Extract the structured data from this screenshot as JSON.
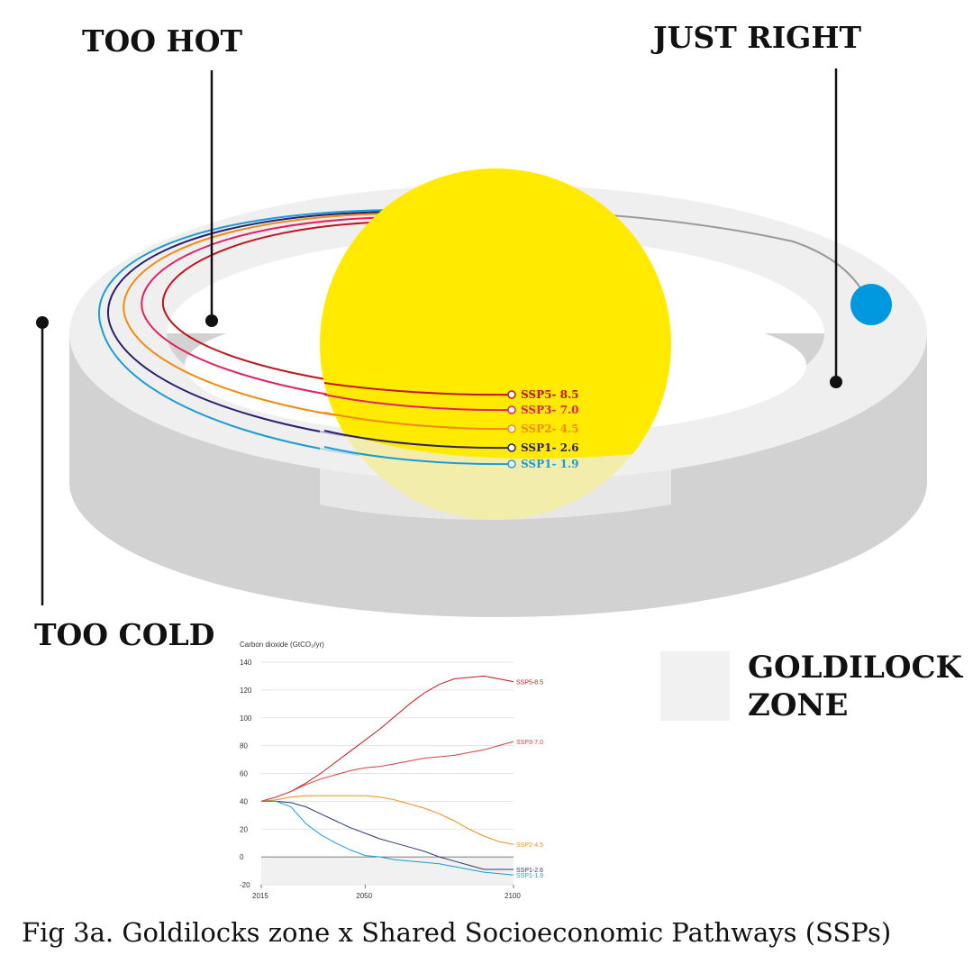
{
  "callouts": {
    "too_hot": "TOO HOT",
    "just_right": "JUST RIGHT",
    "too_cold": "TOO COLD"
  },
  "legend": {
    "label_line1": "GOLDILOCK",
    "label_line2": "ZONE",
    "swatch_color": "#f1f1f1"
  },
  "caption": "Fig 3a. Goldilocks zone x Shared Socioeconomic Pathways (SSPs)",
  "colors": {
    "sun": "#ffea00",
    "planet": "#0099e0",
    "ring_top": "#efefef",
    "ring_side": "#d2d2d2"
  },
  "pathways": [
    {
      "name": "SSP5- 8.5",
      "color": "#c0141b"
    },
    {
      "name": "SSP3- 7.0",
      "color": "#e21f62"
    },
    {
      "name": "SSP2- 4.5",
      "color": "#f28a12"
    },
    {
      "name": "SSP1- 2.6",
      "color": "#2b1f6e"
    },
    {
      "name": "SSP1- 1.9",
      "color": "#1c9bd7"
    }
  ],
  "chart_data": {
    "type": "line",
    "title": "Carbon dioxide (GtCO₂/yr)",
    "xlim": [
      2015,
      2100
    ],
    "ylim": [
      -20,
      140
    ],
    "x_ticks": [
      "2015",
      "2050",
      "2100"
    ],
    "y_ticks": [
      140,
      120,
      100,
      80,
      60,
      40,
      20,
      0,
      -20
    ],
    "series": [
      {
        "name": "SSP5-8.5",
        "color": "#c0141b",
        "x": [
          2015,
          2020,
          2025,
          2030,
          2035,
          2040,
          2045,
          2050,
          2055,
          2060,
          2065,
          2070,
          2075,
          2080,
          2085,
          2090,
          2095,
          2100
        ],
        "y": [
          40,
          43,
          47,
          53,
          60,
          68,
          76,
          84,
          92,
          101,
          110,
          118,
          124,
          128,
          129,
          130,
          128,
          126
        ]
      },
      {
        "name": "SSP3-7.0",
        "color": "#e03a3a",
        "x": [
          2015,
          2020,
          2025,
          2030,
          2035,
          2040,
          2045,
          2050,
          2055,
          2060,
          2065,
          2070,
          2075,
          2080,
          2085,
          2090,
          2095,
          2100
        ],
        "y": [
          40,
          43,
          47,
          52,
          56,
          59,
          62,
          64,
          65,
          67,
          69,
          71,
          72,
          73,
          75,
          77,
          80,
          83
        ]
      },
      {
        "name": "SSP2-4.5",
        "color": "#f08c1e",
        "x": [
          2015,
          2020,
          2025,
          2030,
          2035,
          2040,
          2045,
          2050,
          2055,
          2060,
          2065,
          2070,
          2075,
          2080,
          2085,
          2090,
          2095,
          2100
        ],
        "y": [
          40,
          41,
          43,
          44,
          44,
          44,
          44,
          44,
          43,
          41,
          38,
          35,
          31,
          26,
          20,
          15,
          11,
          9
        ]
      },
      {
        "name": "SSP1-2.6",
        "color": "#2b3a6e",
        "x": [
          2015,
          2020,
          2025,
          2030,
          2035,
          2040,
          2045,
          2050,
          2055,
          2060,
          2065,
          2070,
          2075,
          2080,
          2085,
          2090,
          2095,
          2100
        ],
        "y": [
          40,
          40,
          39,
          36,
          31,
          26,
          21,
          17,
          13,
          10,
          7,
          4,
          0,
          -3,
          -6,
          -9,
          -9,
          -9
        ]
      },
      {
        "name": "SSP1-1.9",
        "color": "#1c9bd7",
        "x": [
          2015,
          2020,
          2025,
          2030,
          2035,
          2040,
          2045,
          2050,
          2055,
          2060,
          2065,
          2070,
          2075,
          2080,
          2085,
          2090,
          2095,
          2100
        ],
        "y": [
          40,
          40,
          36,
          24,
          16,
          10,
          5,
          1,
          0,
          -2,
          -3,
          -4,
          -5,
          -7,
          -9,
          -11,
          -12,
          -13
        ]
      }
    ],
    "grid": true
  }
}
